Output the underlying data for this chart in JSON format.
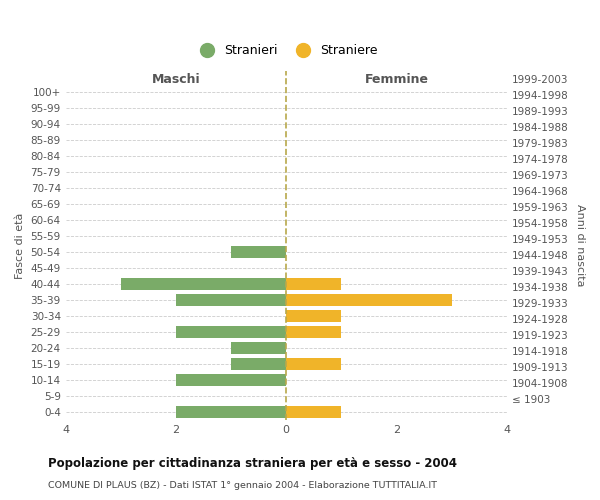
{
  "age_groups": [
    "100+",
    "95-99",
    "90-94",
    "85-89",
    "80-84",
    "75-79",
    "70-74",
    "65-69",
    "60-64",
    "55-59",
    "50-54",
    "45-49",
    "40-44",
    "35-39",
    "30-34",
    "25-29",
    "20-24",
    "15-19",
    "10-14",
    "5-9",
    "0-4"
  ],
  "birth_years": [
    "≤ 1903",
    "1904-1908",
    "1909-1913",
    "1914-1918",
    "1919-1923",
    "1924-1928",
    "1929-1933",
    "1934-1938",
    "1939-1943",
    "1944-1948",
    "1949-1953",
    "1954-1958",
    "1959-1963",
    "1964-1968",
    "1969-1973",
    "1974-1978",
    "1979-1983",
    "1984-1988",
    "1989-1993",
    "1994-1998",
    "1999-2003"
  ],
  "males": [
    0,
    0,
    0,
    0,
    0,
    0,
    0,
    0,
    0,
    0,
    1,
    0,
    3,
    2,
    0,
    2,
    1,
    1,
    2,
    0,
    2
  ],
  "females": [
    0,
    0,
    0,
    0,
    0,
    0,
    0,
    0,
    0,
    0,
    0,
    0,
    1,
    3,
    1,
    1,
    0,
    1,
    0,
    0,
    1
  ],
  "male_color": "#7aab68",
  "female_color": "#f0b429",
  "xlim": 4,
  "title": "Popolazione per cittadinanza straniera per età e sesso - 2004",
  "subtitle": "COMUNE DI PLAUS (BZ) - Dati ISTAT 1° gennaio 2004 - Elaborazione TUTTITALIA.IT",
  "left_label": "Maschi",
  "right_label": "Femmine",
  "left_axis_label": "Fasce di età",
  "right_axis_label": "Anni di nascita",
  "legend_male": "Stranieri",
  "legend_female": "Straniere",
  "bg_color": "#ffffff",
  "grid_color": "#cccccc",
  "bar_height": 0.75
}
